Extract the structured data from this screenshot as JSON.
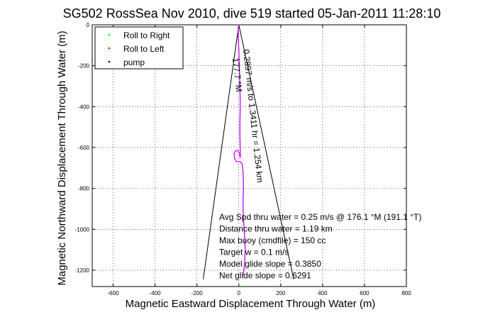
{
  "chart_data": {
    "type": "line",
    "title": "SG502 RossSea Nov 2010, dive 519 started 05-Jan-2011 11:28:10",
    "xlabel": "Magnetic Eastward Displacement Through Water (m)",
    "ylabel": "Magnetic Northward Displacement Through Water (m)",
    "xlim": [
      -700,
      800
    ],
    "ylim": [
      -1280,
      0
    ],
    "xticks": [
      -600,
      -400,
      -200,
      0,
      200,
      400,
      600,
      800
    ],
    "yticks": [
      0,
      -200,
      -400,
      -600,
      -800,
      -1000,
      -1200
    ],
    "grid": true,
    "legend_position": "top-left",
    "legend": [
      {
        "label": "Roll to Right",
        "color": "#00ff00",
        "marker": "."
      },
      {
        "label": "Roll to Left",
        "color": "#ff0000",
        "marker": "."
      },
      {
        "label": "pump",
        "color": "#000000",
        "marker": "."
      }
    ],
    "series": [
      {
        "color": "#0000ff",
        "x": [
          0,
          -3,
          -4,
          -2,
          0,
          2,
          3,
          5,
          6,
          6,
          5,
          5,
          6,
          7,
          6,
          3,
          -5,
          -15,
          -23,
          -20,
          -10,
          5,
          15,
          20,
          22,
          22,
          20,
          20,
          22,
          25,
          28,
          30,
          28,
          25,
          22,
          20
        ],
        "y": [
          0,
          -15,
          -40,
          -80,
          -130,
          -180,
          -240,
          -300,
          -360,
          -420,
          -480,
          -540,
          -600,
          -640,
          -650,
          -630,
          -615,
          -615,
          -630,
          -655,
          -670,
          -668,
          -680,
          -720,
          -770,
          -810,
          -850,
          -900,
          -950,
          -1000,
          -1050,
          -1100,
          -1150,
          -1190,
          -1210,
          -1225
        ]
      },
      {
        "color": "#ff00ff",
        "x": [
          1,
          -2,
          -3,
          -1,
          1,
          3,
          4,
          6,
          7,
          7,
          6,
          6,
          7,
          8,
          7,
          4,
          -4,
          -14,
          -22,
          -19,
          -9,
          6,
          16,
          21,
          23,
          23,
          21,
          21,
          23,
          26,
          29,
          31,
          29,
          26,
          23,
          21
        ],
        "y": [
          0,
          -15,
          -40,
          -80,
          -130,
          -180,
          -240,
          -300,
          -360,
          -420,
          -480,
          -540,
          -600,
          -640,
          -650,
          -630,
          -615,
          -615,
          -630,
          -655,
          -670,
          -668,
          -680,
          -720,
          -770,
          -810,
          -850,
          -900,
          -950,
          -1000,
          -1050,
          -1100,
          -1150,
          -1190,
          -1210,
          -1225
        ]
      }
    ],
    "wedge_lines": [
      {
        "x": [
          0,
          -170
        ],
        "y": [
          0,
          -1245
        ]
      },
      {
        "x": [
          0,
          262
        ],
        "y": [
          0,
          -1245
        ]
      }
    ],
    "annotations": {
      "rotated_speed": "0.2897 m/s to 1.3411 hr = 1.254 km",
      "rotated_heading": "177.7 °M",
      "stats": [
        "Avg Spd thru water =  0.25 m/s @ 176.1    °M (191.1 °T)",
        "Distance thru water =  1.19 km",
        "Max buoy (cmdfile) = 150 cc",
        "Target w = 0.1 m/s",
        "Model glide slope = 0.3850",
        "Net glide slope = 0.6291"
      ]
    }
  }
}
